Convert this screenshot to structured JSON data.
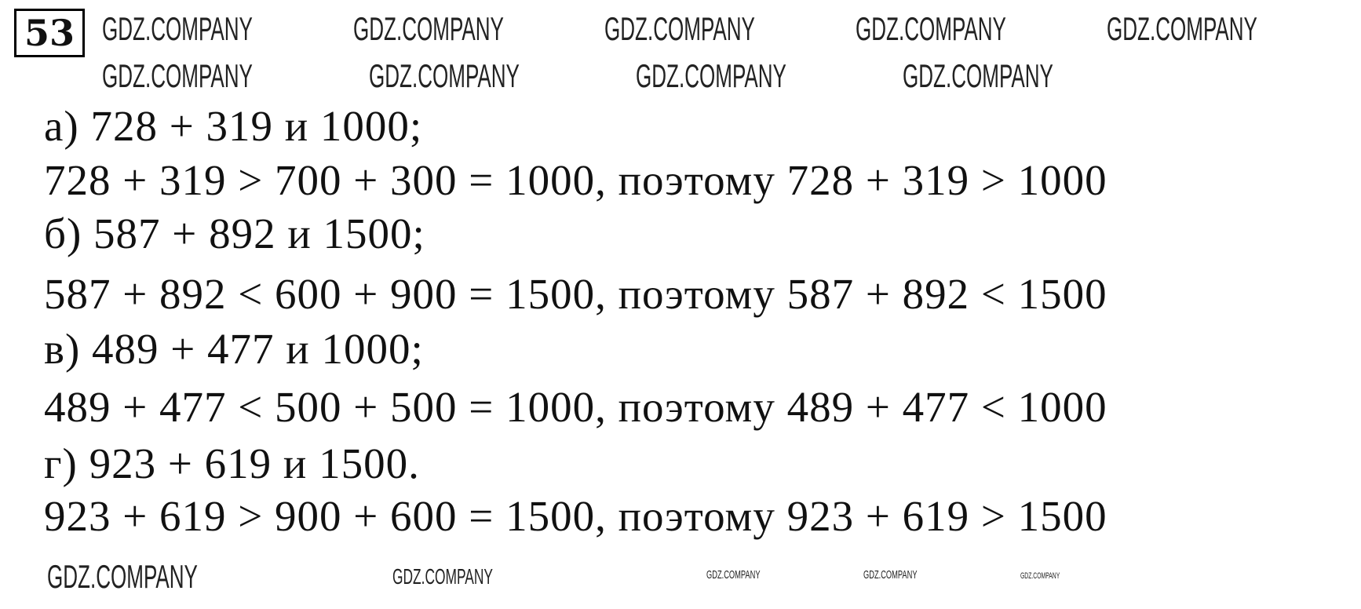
{
  "task_number": "53",
  "lines": [
    "а) 728 + 319 и 1000;",
    "728 + 319  > 700 + 300 = 1000, поэтому 728 + 319 > 1000",
    "б) 587 + 892 и 1500;",
    "587 + 892 <  600 + 900 = 1500, поэтому 587 + 892 <  1500",
    "в) 489 + 477 и 1000;",
    "489 + 477  < 500 + 500 = 1000, поэтому 489 + 477  < 1000",
    "г) 923 +  619 и 1500.",
    "923 +  619 > 900 + 600 = 1500, поэтому 923 +  619 > 1500"
  ],
  "watermark": "GDZ.COMPANY"
}
